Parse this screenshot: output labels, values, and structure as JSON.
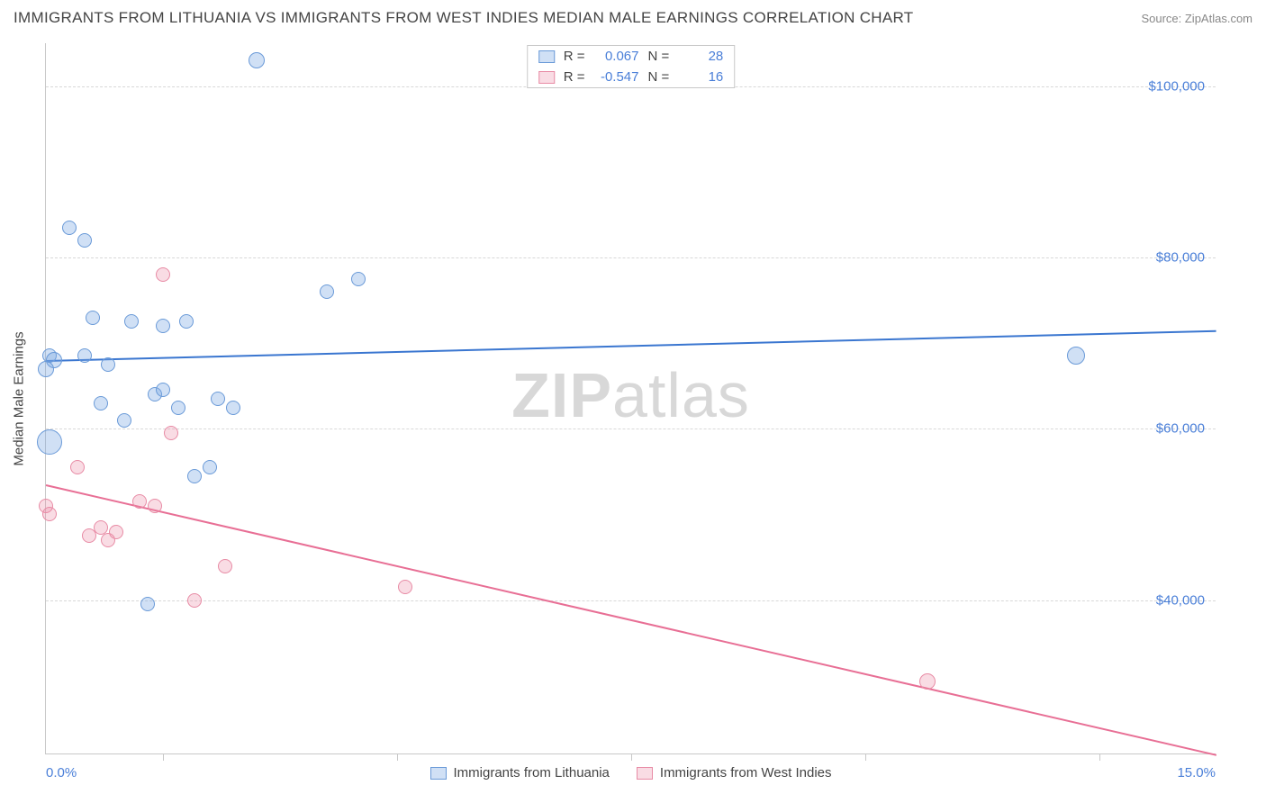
{
  "title": "IMMIGRANTS FROM LITHUANIA VS IMMIGRANTS FROM WEST INDIES MEDIAN MALE EARNINGS CORRELATION CHART",
  "source": "Source: ZipAtlas.com",
  "watermark_a": "ZIP",
  "watermark_b": "atlas",
  "y_axis_title": "Median Male Earnings",
  "x_min_label": "0.0%",
  "x_max_label": "15.0%",
  "x_range": [
    0.0,
    15.0
  ],
  "y_range": [
    22000,
    105000
  ],
  "y_ticks": [
    {
      "val": 40000,
      "label": "$40,000"
    },
    {
      "val": 60000,
      "label": "$60,000"
    },
    {
      "val": 80000,
      "label": "$80,000"
    },
    {
      "val": 100000,
      "label": "$100,000"
    }
  ],
  "x_tick_positions": [
    1.5,
    4.5,
    7.5,
    10.5,
    13.5
  ],
  "series": {
    "a": {
      "name": "Immigrants from Lithuania",
      "color_fill": "rgba(120,165,225,0.35)",
      "color_stroke": "#6a9ad8",
      "line_color": "#3a76d0",
      "r_label": "R =",
      "r_value": "0.067",
      "n_label": "N =",
      "n_value": "28",
      "trend": {
        "x1": 0.0,
        "y1": 68000,
        "x2": 15.0,
        "y2": 71500
      },
      "points": [
        {
          "x": 0.05,
          "y": 68500,
          "r": 8
        },
        {
          "x": 0.1,
          "y": 68000,
          "r": 9
        },
        {
          "x": 0.0,
          "y": 67000,
          "r": 9
        },
        {
          "x": 0.05,
          "y": 58500,
          "r": 14
        },
        {
          "x": 0.3,
          "y": 83500,
          "r": 8
        },
        {
          "x": 0.5,
          "y": 68500,
          "r": 8
        },
        {
          "x": 0.5,
          "y": 82000,
          "r": 8
        },
        {
          "x": 0.6,
          "y": 73000,
          "r": 8
        },
        {
          "x": 0.7,
          "y": 63000,
          "r": 8
        },
        {
          "x": 0.8,
          "y": 67500,
          "r": 8
        },
        {
          "x": 1.0,
          "y": 61000,
          "r": 8
        },
        {
          "x": 1.1,
          "y": 72500,
          "r": 8
        },
        {
          "x": 1.3,
          "y": 39500,
          "r": 8
        },
        {
          "x": 1.4,
          "y": 64000,
          "r": 8
        },
        {
          "x": 1.5,
          "y": 64500,
          "r": 8
        },
        {
          "x": 1.5,
          "y": 72000,
          "r": 8
        },
        {
          "x": 1.7,
          "y": 62500,
          "r": 8
        },
        {
          "x": 1.8,
          "y": 72500,
          "r": 8
        },
        {
          "x": 1.9,
          "y": 54500,
          "r": 8
        },
        {
          "x": 2.1,
          "y": 55500,
          "r": 8
        },
        {
          "x": 2.2,
          "y": 63500,
          "r": 8
        },
        {
          "x": 2.4,
          "y": 62500,
          "r": 8
        },
        {
          "x": 2.7,
          "y": 103000,
          "r": 9
        },
        {
          "x": 3.6,
          "y": 76000,
          "r": 8
        },
        {
          "x": 4.0,
          "y": 77500,
          "r": 8
        },
        {
          "x": 13.2,
          "y": 68500,
          "r": 10
        }
      ]
    },
    "b": {
      "name": "Immigrants from West Indies",
      "color_fill": "rgba(235,140,165,0.30)",
      "color_stroke": "#e88ba5",
      "line_color": "#e86f95",
      "r_label": "R =",
      "r_value": "-0.547",
      "n_label": "N =",
      "n_value": "16",
      "trend": {
        "x1": 0.0,
        "y1": 53500,
        "x2": 15.0,
        "y2": 22000
      },
      "points": [
        {
          "x": 0.0,
          "y": 51000,
          "r": 8
        },
        {
          "x": 0.05,
          "y": 50000,
          "r": 8
        },
        {
          "x": 0.4,
          "y": 55500,
          "r": 8
        },
        {
          "x": 0.55,
          "y": 47500,
          "r": 8
        },
        {
          "x": 0.7,
          "y": 48500,
          "r": 8
        },
        {
          "x": 0.8,
          "y": 47000,
          "r": 8
        },
        {
          "x": 0.9,
          "y": 48000,
          "r": 8
        },
        {
          "x": 1.2,
          "y": 51500,
          "r": 8
        },
        {
          "x": 1.4,
          "y": 51000,
          "r": 8
        },
        {
          "x": 1.5,
          "y": 78000,
          "r": 8
        },
        {
          "x": 1.6,
          "y": 59500,
          "r": 8
        },
        {
          "x": 1.9,
          "y": 40000,
          "r": 8
        },
        {
          "x": 2.3,
          "y": 44000,
          "r": 8
        },
        {
          "x": 4.6,
          "y": 41500,
          "r": 8
        },
        {
          "x": 11.3,
          "y": 30500,
          "r": 9
        }
      ]
    }
  }
}
